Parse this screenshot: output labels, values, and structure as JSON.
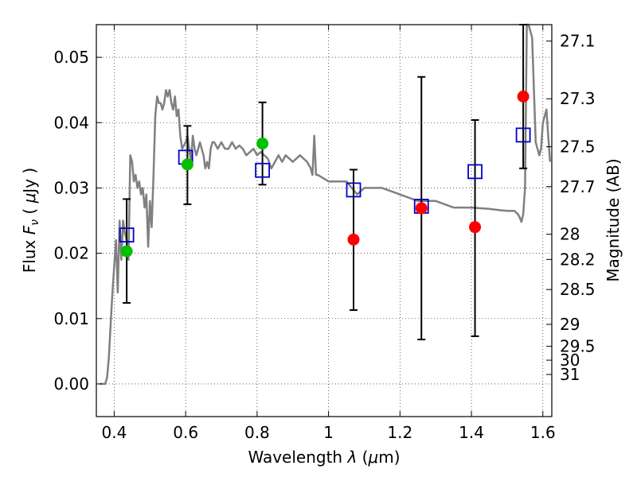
{
  "chart_data": {
    "type": "scatter",
    "xlabel_prefix": "Wavelength  ",
    "xlabel_symbol": "λ",
    "xlabel_unit_open": " (",
    "xlabel_unit_mu": "μ",
    "xlabel_unit_close": "m)",
    "ylabel_prefix": "Flux  ",
    "ylabel_symbol": "F",
    "ylabel_sub": "ν",
    "ylabel_unit_open": "  ( ",
    "ylabel_unit_mu": "μ",
    "ylabel_unit_close": "Jy )",
    "y2label": "Magnitude (AB)",
    "xlim": [
      0.35,
      1.625
    ],
    "ylim": [
      -0.005,
      0.055
    ],
    "grid": true,
    "x_ticks": [
      0.4,
      0.6,
      0.8,
      1.0,
      1.2,
      1.4,
      1.6
    ],
    "x_tick_labels": [
      "0.4",
      "0.6",
      "0.8",
      "1",
      "1.2",
      "1.4",
      "1.6"
    ],
    "y_ticks": [
      0.0,
      0.01,
      0.02,
      0.03,
      0.04,
      0.05
    ],
    "y_tick_labels": [
      "0.00",
      "0.01",
      "0.02",
      "0.03",
      "0.04",
      "0.05"
    ],
    "mag_ticks": [
      "27.1",
      "27.3",
      "27.5",
      "27.7",
      "28",
      "28.2",
      "28.5",
      "29",
      "29.5",
      "30",
      "31"
    ],
    "series": [
      {
        "marker": "open-square",
        "color": "#0000cc",
        "x": [
          0.435,
          0.6,
          0.815,
          1.07,
          1.26,
          1.41,
          1.545
        ],
        "y": [
          0.0228,
          0.0347,
          0.0327,
          0.0297,
          0.0272,
          0.0325,
          0.0381
        ]
      },
      {
        "marker": "filled-circle",
        "color": "#00c000",
        "x": [
          0.435,
          0.605,
          0.815
        ],
        "y": [
          0.0203,
          0.0336,
          0.0368
        ]
      },
      {
        "marker": "filled-circle",
        "color": "#ff0000",
        "x": [
          1.07,
          1.26,
          1.41,
          1.545
        ],
        "y": [
          0.0221,
          0.0269,
          0.024,
          0.044
        ]
      }
    ],
    "error_bars": {
      "color": "#000000",
      "x": [
        0.435,
        0.605,
        0.815,
        1.07,
        1.26,
        1.41,
        1.545
      ],
      "y_low": [
        0.0124,
        0.0275,
        0.0305,
        0.0113,
        0.0068,
        0.0073,
        0.033
      ],
      "y_high": [
        0.0283,
        0.0395,
        0.0431,
        0.0328,
        0.047,
        0.0404,
        0.055
      ]
    },
    "model_spectrum": {
      "color": "#808080",
      "x": [
        0.36,
        0.375,
        0.38,
        0.385,
        0.39,
        0.395,
        0.4,
        0.405,
        0.41,
        0.415,
        0.42,
        0.425,
        0.43,
        0.435,
        0.44,
        0.445,
        0.45,
        0.455,
        0.46,
        0.465,
        0.47,
        0.475,
        0.48,
        0.485,
        0.49,
        0.495,
        0.5,
        0.505,
        0.51,
        0.515,
        0.52,
        0.525,
        0.53,
        0.535,
        0.54,
        0.545,
        0.55,
        0.555,
        0.56,
        0.565,
        0.57,
        0.575,
        0.58,
        0.585,
        0.59,
        0.6,
        0.605,
        0.61,
        0.615,
        0.62,
        0.625,
        0.63,
        0.635,
        0.64,
        0.645,
        0.65,
        0.655,
        0.66,
        0.665,
        0.67,
        0.675,
        0.68,
        0.69,
        0.7,
        0.71,
        0.72,
        0.73,
        0.74,
        0.75,
        0.76,
        0.77,
        0.78,
        0.79,
        0.8,
        0.81,
        0.82,
        0.83,
        0.84,
        0.85,
        0.86,
        0.87,
        0.88,
        0.9,
        0.92,
        0.94,
        0.95,
        0.955,
        0.96,
        0.965,
        0.97,
        1.0,
        1.05,
        1.08,
        1.1,
        1.12,
        1.15,
        1.2,
        1.25,
        1.3,
        1.35,
        1.4,
        1.45,
        1.48,
        1.5,
        1.51,
        1.52,
        1.53,
        1.535,
        1.54,
        1.545,
        1.55,
        1.555,
        1.56,
        1.57,
        1.58,
        1.59,
        1.595,
        1.6,
        1.61,
        1.615,
        1.62
      ],
      "y": [
        0.0,
        0.0,
        0.001,
        0.004,
        0.009,
        0.014,
        0.018,
        0.022,
        0.014,
        0.025,
        0.019,
        0.025,
        0.023,
        0.022,
        0.019,
        0.035,
        0.034,
        0.031,
        0.032,
        0.03,
        0.031,
        0.029,
        0.03,
        0.027,
        0.029,
        0.021,
        0.028,
        0.024,
        0.032,
        0.041,
        0.044,
        0.043,
        0.043,
        0.042,
        0.043,
        0.045,
        0.044,
        0.045,
        0.043,
        0.042,
        0.044,
        0.041,
        0.042,
        0.038,
        0.036,
        0.037,
        0.038,
        0.036,
        0.034,
        0.038,
        0.036,
        0.035,
        0.036,
        0.037,
        0.036,
        0.035,
        0.033,
        0.034,
        0.033,
        0.036,
        0.037,
        0.037,
        0.036,
        0.037,
        0.036,
        0.036,
        0.037,
        0.036,
        0.0365,
        0.036,
        0.035,
        0.0355,
        0.036,
        0.035,
        0.0355,
        0.035,
        0.0345,
        0.033,
        0.034,
        0.035,
        0.034,
        0.035,
        0.034,
        0.035,
        0.034,
        0.033,
        0.032,
        0.038,
        0.032,
        0.032,
        0.031,
        0.031,
        0.029,
        0.03,
        0.03,
        0.03,
        0.029,
        0.028,
        0.028,
        0.027,
        0.027,
        0.0268,
        0.0266,
        0.0265,
        0.0265,
        0.0265,
        0.026,
        0.0255,
        0.0248,
        0.026,
        0.03,
        0.055,
        0.055,
        0.053,
        0.037,
        0.035,
        0.036,
        0.04,
        0.042,
        0.038,
        0.034
      ]
    }
  }
}
